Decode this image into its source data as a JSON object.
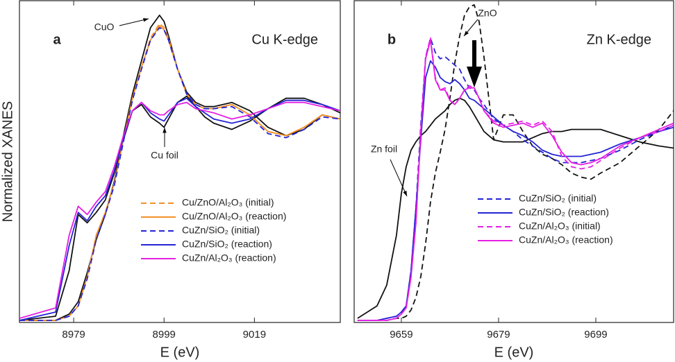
{
  "chart_data": [
    {
      "type": "line",
      "panel_label": "a",
      "subtitle": "Cu K-edge",
      "ylabel": "Normalized XANES",
      "xlabel": "E (eV)",
      "xlim": [
        8967,
        9038
      ],
      "ylim": [
        0,
        1.55
      ],
      "xticks": [
        8979,
        8999,
        9019
      ],
      "legend": "lower right",
      "x": [
        8967,
        8975,
        8978,
        8980,
        8982,
        8984,
        8986,
        8988,
        8990,
        8992,
        8994,
        8996,
        8998,
        8999,
        9000,
        9002,
        9004,
        9006,
        9008,
        9010,
        9014,
        9018,
        9022,
        9026,
        9030,
        9034,
        9038
      ],
      "series": [
        {
          "name": "CuO",
          "color": "#111111",
          "dash": false,
          "in_legend": false,
          "values": [
            0.01,
            0.01,
            0.04,
            0.1,
            0.24,
            0.4,
            0.52,
            0.68,
            0.9,
            1.1,
            1.26,
            1.42,
            1.48,
            1.45,
            1.38,
            1.22,
            1.11,
            1.06,
            1.04,
            1.04,
            1.06,
            1.02,
            0.94,
            0.9,
            0.93,
            1.0,
            0.98
          ]
        },
        {
          "name": "Cu foil",
          "color": "#111111",
          "dash": false,
          "in_legend": false,
          "values": [
            0.01,
            0.03,
            0.25,
            0.52,
            0.48,
            0.53,
            0.59,
            0.72,
            0.88,
            1.02,
            1.05,
            0.99,
            0.96,
            0.94,
            0.98,
            1.06,
            1.09,
            1.04,
            0.99,
            0.96,
            0.93,
            0.97,
            1.03,
            1.08,
            1.08,
            1.05,
            1.01
          ]
        },
        {
          "name": "Cu/ZnO/Al₂O₃ (initial)",
          "color": "#f39028",
          "dash": true,
          "in_legend": true,
          "values": [
            0.01,
            0.01,
            0.03,
            0.08,
            0.22,
            0.42,
            0.53,
            0.67,
            0.88,
            1.08,
            1.23,
            1.37,
            1.44,
            1.42,
            1.37,
            1.22,
            1.1,
            1.05,
            1.03,
            1.03,
            1.05,
            1.0,
            0.92,
            0.9,
            0.94,
            1.0,
            0.98
          ]
        },
        {
          "name": "Cu/ZnO/Al₂O₃ (reaction)",
          "color": "#f39028",
          "dash": false,
          "in_legend": true,
          "values": [
            0.01,
            0.01,
            0.03,
            0.08,
            0.22,
            0.42,
            0.53,
            0.67,
            0.88,
            1.08,
            1.23,
            1.36,
            1.43,
            1.41,
            1.36,
            1.22,
            1.1,
            1.05,
            1.03,
            1.03,
            1.05,
            1.0,
            0.92,
            0.9,
            0.94,
            1.0,
            0.98
          ]
        },
        {
          "name": "CuZn/SiO₂ (initial)",
          "color": "#2323d6",
          "dash": true,
          "in_legend": true,
          "values": [
            0.01,
            0.01,
            0.03,
            0.08,
            0.21,
            0.4,
            0.52,
            0.66,
            0.87,
            1.07,
            1.22,
            1.36,
            1.42,
            1.41,
            1.36,
            1.22,
            1.1,
            1.05,
            1.03,
            1.03,
            1.04,
            0.99,
            0.91,
            0.89,
            0.93,
            0.99,
            0.98
          ]
        },
        {
          "name": "CuZn/SiO₂ (reaction)",
          "color": "#2323d6",
          "dash": false,
          "in_legend": true,
          "values": [
            0.01,
            0.05,
            0.37,
            0.53,
            0.49,
            0.56,
            0.61,
            0.73,
            0.89,
            1.02,
            1.06,
            1.01,
            0.98,
            0.97,
            1.0,
            1.06,
            1.08,
            1.04,
            1.01,
            0.98,
            0.96,
            0.98,
            1.03,
            1.07,
            1.07,
            1.05,
            1.02
          ]
        },
        {
          "name": "CuZn/Al₂O₃ (reaction)",
          "color": "#e41ee4",
          "dash": false,
          "in_legend": true,
          "values": [
            0.02,
            0.07,
            0.42,
            0.56,
            0.52,
            0.58,
            0.63,
            0.75,
            0.9,
            1.02,
            1.06,
            1.02,
            1.0,
            1.0,
            1.02,
            1.05,
            1.06,
            1.03,
            1.02,
            1.01,
            0.98,
            1.0,
            1.03,
            1.06,
            1.06,
            1.04,
            1.02
          ]
        }
      ]
    },
    {
      "type": "line",
      "panel_label": "b",
      "subtitle": "Zn K-edge",
      "xlabel": "E (eV)",
      "xlim": [
        9649.3,
        9715
      ],
      "ylim": [
        0,
        1.55
      ],
      "xticks": [
        9659,
        9679,
        9699
      ],
      "legend": "center right",
      "x": [
        9650,
        9654,
        9656,
        9658,
        9659,
        9660,
        9661,
        9662,
        9663,
        9664,
        9665,
        9666,
        9667,
        9668,
        9669,
        9670,
        9671,
        9672,
        9673,
        9674,
        9675,
        9676,
        9678,
        9680,
        9682,
        9684,
        9686,
        9688,
        9690,
        9692,
        9694,
        9696,
        9698,
        9700,
        9704,
        9708,
        9712,
        9715
      ],
      "series": [
        {
          "name": "Zn foil",
          "color": "#111111",
          "dash": false,
          "in_legend": false,
          "values": [
            0.02,
            0.08,
            0.18,
            0.42,
            0.62,
            0.75,
            0.83,
            0.87,
            0.9,
            0.92,
            0.95,
            0.98,
            1.0,
            1.02,
            1.05,
            1.07,
            1.08,
            1.07,
            1.04,
            1.0,
            0.96,
            0.92,
            0.88,
            0.87,
            0.87,
            0.87,
            0.89,
            0.91,
            0.92,
            0.92,
            0.93,
            0.93,
            0.93,
            0.93,
            0.9,
            0.87,
            0.85,
            0.84
          ]
        },
        {
          "name": "ZnO",
          "color": "#111111",
          "dash": true,
          "in_legend": false,
          "values": [
            0.01,
            0.01,
            0.01,
            0.02,
            0.02,
            0.03,
            0.06,
            0.12,
            0.22,
            0.38,
            0.58,
            0.72,
            0.82,
            0.93,
            1.08,
            1.25,
            1.38,
            1.48,
            1.52,
            1.53,
            1.45,
            1.28,
            0.88,
            1.0,
            1.0,
            0.92,
            0.85,
            0.81,
            0.79,
            0.76,
            0.72,
            0.7,
            0.69,
            0.72,
            0.77,
            0.85,
            0.93,
            1.02
          ]
        },
        {
          "name": "CuZn/SiO₂ (initial)",
          "color": "#2323d6",
          "dash": true,
          "in_legend": true,
          "values": [
            0.01,
            0.01,
            0.02,
            0.03,
            0.05,
            0.08,
            0.25,
            0.55,
            0.95,
            1.28,
            1.37,
            1.3,
            1.27,
            1.28,
            1.26,
            1.24,
            1.22,
            1.17,
            1.13,
            1.12,
            1.08,
            1.05,
            0.98,
            0.95,
            0.92,
            0.88,
            0.85,
            0.82,
            0.79,
            0.77,
            0.77,
            0.77,
            0.78,
            0.79,
            0.83,
            0.88,
            0.92,
            0.95
          ]
        },
        {
          "name": "CuZn/SiO₂ (reaction)",
          "color": "#2323d6",
          "dash": false,
          "in_legend": true,
          "values": [
            0.01,
            0.01,
            0.02,
            0.03,
            0.05,
            0.08,
            0.25,
            0.55,
            0.88,
            1.18,
            1.26,
            1.23,
            1.18,
            1.16,
            1.15,
            1.17,
            1.15,
            1.12,
            1.08,
            1.07,
            1.05,
            1.03,
            0.99,
            0.95,
            0.92,
            0.9,
            0.87,
            0.83,
            0.81,
            0.8,
            0.8,
            0.8,
            0.81,
            0.82,
            0.86,
            0.89,
            0.92,
            0.94
          ]
        },
        {
          "name": "CuZn/Al₂O₃ (initial)",
          "color": "#e41ee4",
          "dash": true,
          "in_legend": true,
          "values": [
            0.01,
            0.01,
            0.01,
            0.02,
            0.04,
            0.07,
            0.22,
            0.48,
            0.92,
            1.28,
            1.37,
            1.18,
            1.12,
            1.13,
            1.07,
            1.05,
            1.08,
            1.12,
            1.14,
            1.13,
            1.08,
            1.02,
            0.97,
            0.95,
            0.96,
            0.97,
            0.95,
            0.97,
            0.92,
            0.8,
            0.75,
            0.74,
            0.75,
            0.78,
            0.84,
            0.89,
            0.92,
            0.95
          ]
        },
        {
          "name": "CuZn/Al₂O₃ (reaction)",
          "color": "#e41ee4",
          "dash": false,
          "in_legend": true,
          "values": [
            0.01,
            0.01,
            0.01,
            0.02,
            0.04,
            0.07,
            0.22,
            0.48,
            0.92,
            1.27,
            1.36,
            1.17,
            1.12,
            1.12,
            1.07,
            1.05,
            1.08,
            1.12,
            1.13,
            1.13,
            1.08,
            1.02,
            0.96,
            0.94,
            0.95,
            0.96,
            0.94,
            0.96,
            0.9,
            0.82,
            0.77,
            0.76,
            0.77,
            0.79,
            0.85,
            0.89,
            0.93,
            0.96
          ]
        }
      ]
    }
  ]
}
